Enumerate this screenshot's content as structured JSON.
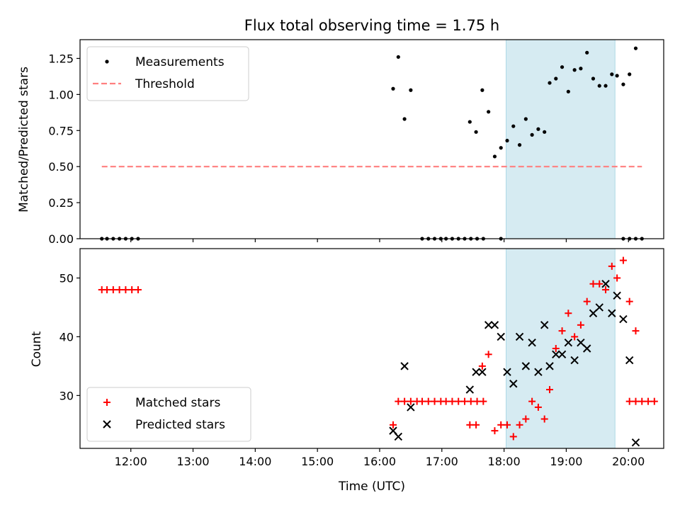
{
  "chart_data": [
    {
      "type": "scatter",
      "title": "Flux total observing time = 1.75 h",
      "xlabel": "",
      "ylabel": "Matched/Predicted stars",
      "xlim": [
        "11:11",
        "20:34"
      ],
      "ylim": [
        0,
        1.38
      ],
      "yticks": [
        0.0,
        0.25,
        0.5,
        0.75,
        1.0,
        1.25
      ],
      "ytick_labels": [
        "0.00",
        "0.25",
        "0.50",
        "0.75",
        "1.00",
        "1.25"
      ],
      "highlight_span": [
        "18:02",
        "19:47"
      ],
      "legend_position": "upper-left",
      "grid": false,
      "series": [
        {
          "name": "Measurements",
          "kind": "scatter",
          "marker": "dot",
          "color": "#000000",
          "points": [
            [
              "11:32",
              0
            ],
            [
              "11:37",
              0
            ],
            [
              "11:43",
              0
            ],
            [
              "11:49",
              0
            ],
            [
              "11:55",
              0
            ],
            [
              "12:01",
              0
            ],
            [
              "12:07",
              0
            ],
            [
              "16:13",
              1.04
            ],
            [
              "16:18",
              1.26
            ],
            [
              "16:24",
              0.83
            ],
            [
              "16:30",
              1.03
            ],
            [
              "16:41",
              0
            ],
            [
              "16:47",
              0
            ],
            [
              "16:53",
              0
            ],
            [
              "16:59",
              0
            ],
            [
              "17:04",
              0
            ],
            [
              "17:10",
              0
            ],
            [
              "17:16",
              0
            ],
            [
              "17:22",
              0
            ],
            [
              "17:28",
              0
            ],
            [
              "17:34",
              0
            ],
            [
              "17:40",
              0
            ],
            [
              "17:27",
              0.81
            ],
            [
              "17:33",
              0.74
            ],
            [
              "17:39",
              1.03
            ],
            [
              "17:45",
              0.88
            ],
            [
              "17:51",
              0.57
            ],
            [
              "17:57",
              0.63
            ],
            [
              "17:57",
              0
            ],
            [
              "18:03",
              0.68
            ],
            [
              "18:09",
              0.78
            ],
            [
              "18:15",
              0.65
            ],
            [
              "18:21",
              0.83
            ],
            [
              "18:27",
              0.72
            ],
            [
              "18:33",
              0.76
            ],
            [
              "18:39",
              0.74
            ],
            [
              "18:44",
              1.08
            ],
            [
              "18:50",
              1.11
            ],
            [
              "18:56",
              1.19
            ],
            [
              "19:02",
              1.02
            ],
            [
              "19:08",
              1.17
            ],
            [
              "19:14",
              1.18
            ],
            [
              "19:20",
              1.29
            ],
            [
              "19:26",
              1.11
            ],
            [
              "19:32",
              1.06
            ],
            [
              "19:38",
              1.06
            ],
            [
              "19:44",
              1.14
            ],
            [
              "19:49",
              1.13
            ],
            [
              "19:55",
              1.07
            ],
            [
              "20:01",
              1.14
            ],
            [
              "20:07",
              1.32
            ],
            [
              "19:55",
              0
            ],
            [
              "20:01",
              0
            ],
            [
              "20:07",
              0
            ],
            [
              "20:13",
              0
            ]
          ]
        },
        {
          "name": "Threshold",
          "kind": "hline",
          "style": "dashed",
          "color": "#ff7f7f",
          "x_range": [
            "11:32",
            "20:13"
          ],
          "y": 0.5
        }
      ]
    },
    {
      "type": "scatter",
      "title": "",
      "xlabel": "Time (UTC)",
      "ylabel": "Count",
      "xlim": [
        "11:11",
        "20:34"
      ],
      "xticks": [
        "12:00",
        "13:00",
        "14:00",
        "15:00",
        "16:00",
        "17:00",
        "18:00",
        "19:00",
        "20:00"
      ],
      "ylim": [
        21,
        55
      ],
      "yticks": [
        30,
        40,
        50
      ],
      "ytick_labels": [
        "30",
        "40",
        "50"
      ],
      "highlight_span": [
        "18:02",
        "19:47"
      ],
      "legend_position": "lower-left",
      "grid": false,
      "series": [
        {
          "name": "Matched stars",
          "kind": "scatter",
          "marker": "plus",
          "color": "#ff0000",
          "points": [
            [
              "11:32",
              48
            ],
            [
              "11:37",
              48
            ],
            [
              "11:43",
              48
            ],
            [
              "11:49",
              48
            ],
            [
              "11:55",
              48
            ],
            [
              "12:01",
              48
            ],
            [
              "12:07",
              48
            ],
            [
              "16:13",
              25
            ],
            [
              "16:18",
              29
            ],
            [
              "16:24",
              29
            ],
            [
              "16:30",
              29
            ],
            [
              "16:36",
              29
            ],
            [
              "16:41",
              29
            ],
            [
              "16:47",
              29
            ],
            [
              "16:53",
              29
            ],
            [
              "16:59",
              29
            ],
            [
              "17:04",
              29
            ],
            [
              "17:10",
              29
            ],
            [
              "17:16",
              29
            ],
            [
              "17:22",
              29
            ],
            [
              "17:28",
              29
            ],
            [
              "17:34",
              29
            ],
            [
              "17:40",
              29
            ],
            [
              "17:27",
              25
            ],
            [
              "17:33",
              25
            ],
            [
              "17:39",
              35
            ],
            [
              "17:45",
              37
            ],
            [
              "17:51",
              24
            ],
            [
              "17:57",
              25
            ],
            [
              "18:03",
              25
            ],
            [
              "18:09",
              23
            ],
            [
              "18:15",
              25
            ],
            [
              "18:21",
              26
            ],
            [
              "18:27",
              29
            ],
            [
              "18:33",
              28
            ],
            [
              "18:39",
              26
            ],
            [
              "18:44",
              31
            ],
            [
              "18:50",
              38
            ],
            [
              "18:56",
              41
            ],
            [
              "19:02",
              44
            ],
            [
              "19:08",
              40
            ],
            [
              "19:14",
              42
            ],
            [
              "19:20",
              46
            ],
            [
              "19:26",
              49
            ],
            [
              "19:32",
              49
            ],
            [
              "19:38",
              48
            ],
            [
              "19:44",
              52
            ],
            [
              "19:49",
              50
            ],
            [
              "19:55",
              53
            ],
            [
              "20:01",
              46
            ],
            [
              "20:07",
              41
            ],
            [
              "20:01",
              29
            ],
            [
              "20:07",
              29
            ],
            [
              "20:13",
              29
            ],
            [
              "20:19",
              29
            ],
            [
              "20:25",
              29
            ]
          ]
        },
        {
          "name": "Predicted stars",
          "kind": "scatter",
          "marker": "x",
          "color": "#000000",
          "points": [
            [
              "16:13",
              24
            ],
            [
              "16:18",
              23
            ],
            [
              "16:24",
              35
            ],
            [
              "16:30",
              28
            ],
            [
              "17:27",
              31
            ],
            [
              "17:33",
              34
            ],
            [
              "17:39",
              34
            ],
            [
              "17:45",
              42
            ],
            [
              "17:51",
              42
            ],
            [
              "17:57",
              40
            ],
            [
              "18:03",
              34
            ],
            [
              "18:09",
              32
            ],
            [
              "18:15",
              40
            ],
            [
              "18:21",
              35
            ],
            [
              "18:27",
              39
            ],
            [
              "18:33",
              34
            ],
            [
              "18:39",
              42
            ],
            [
              "18:44",
              35
            ],
            [
              "18:50",
              37
            ],
            [
              "18:56",
              37
            ],
            [
              "19:02",
              39
            ],
            [
              "19:08",
              36
            ],
            [
              "19:14",
              39
            ],
            [
              "19:20",
              38
            ],
            [
              "19:26",
              44
            ],
            [
              "19:32",
              45
            ],
            [
              "19:38",
              49
            ],
            [
              "19:44",
              44
            ],
            [
              "19:49",
              47
            ],
            [
              "19:55",
              43
            ],
            [
              "20:01",
              36
            ],
            [
              "20:07",
              22
            ]
          ]
        }
      ]
    }
  ]
}
